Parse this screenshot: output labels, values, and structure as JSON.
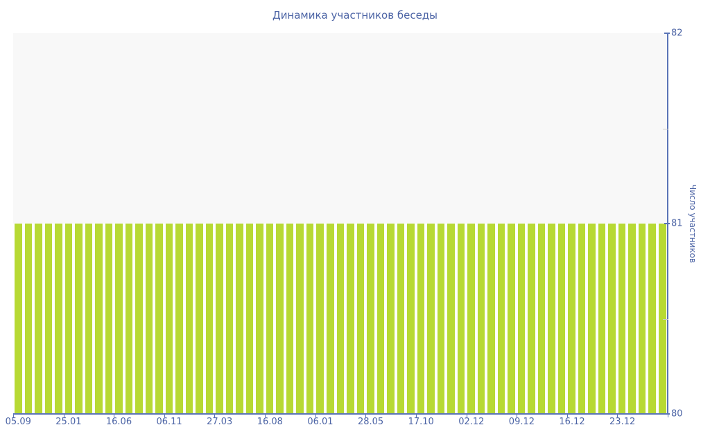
{
  "title": "Динамика участников беседы",
  "colors": {
    "text_blue": "#4c64a5",
    "axis_blue": "#5a74b6",
    "bar_green": "#b7d934",
    "plot_background": "#f8f8f8",
    "bar_gap_white": "#ffffff",
    "minor_tick_gray": "#c9c9c9",
    "page_background": "#ffffff"
  },
  "chart_data": {
    "type": "bar",
    "title": "Динамика участников беседы",
    "xlabel": "",
    "ylabel": "Число участников",
    "ylim": [
      80,
      82
    ],
    "yticks": [
      80,
      81,
      82
    ],
    "y_minor_ticks": [
      80.5,
      81.5
    ],
    "grid": false,
    "legend": "none",
    "y_axis_position": "right",
    "x_tick_labels": [
      "05.09",
      "25.01",
      "16.06",
      "06.11",
      "27.03",
      "16.08",
      "06.01",
      "28.05",
      "17.10",
      "02.12",
      "09.12",
      "16.12",
      "23.12"
    ],
    "x_label_every": 5,
    "bar_count": 65,
    "values": [
      81,
      81,
      81,
      81,
      81,
      81,
      81,
      81,
      81,
      81,
      81,
      81,
      81,
      81,
      81,
      81,
      81,
      81,
      81,
      81,
      81,
      81,
      81,
      81,
      81,
      81,
      81,
      81,
      81,
      81,
      81,
      81,
      81,
      81,
      81,
      81,
      81,
      81,
      81,
      81,
      81,
      81,
      81,
      81,
      81,
      81,
      81,
      81,
      81,
      81,
      81,
      81,
      81,
      81,
      81,
      81,
      81,
      81,
      81,
      81,
      81,
      81,
      81,
      81,
      81
    ]
  }
}
